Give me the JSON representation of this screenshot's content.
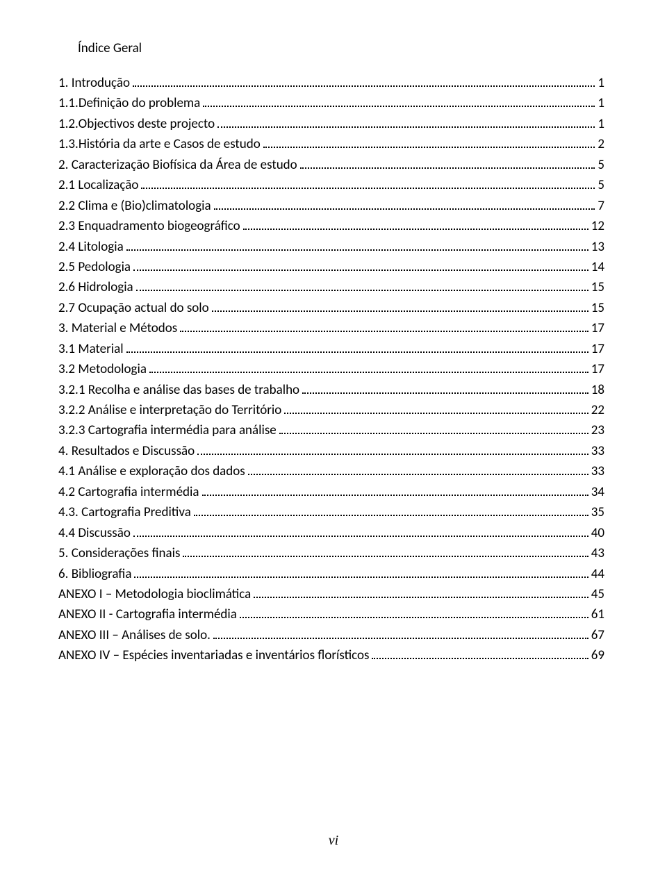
{
  "title": "Índice Geral",
  "page_number_label": "vi",
  "colors": {
    "background": "#ffffff",
    "text": "#000000"
  },
  "typography": {
    "body_font": "Calibri",
    "body_size_pt": 14,
    "page_number_font": "Times New Roman",
    "page_number_style": "italic"
  },
  "entries": [
    {
      "label": "1. Introdução",
      "page": "1"
    },
    {
      "label": "1.1.Definição do problema",
      "page": "1"
    },
    {
      "label": "1.2.Objectivos deste projecto",
      "page": "1"
    },
    {
      "label": "1.3.História da arte e Casos de estudo",
      "page": "2"
    },
    {
      "label": "2. Caracterização Biofísica da Área de estudo",
      "page": "5"
    },
    {
      "label": "2.1 Localização",
      "page": "5"
    },
    {
      "label": "2.2 Clima e (Bio)climatologia",
      "page": "7"
    },
    {
      "label": "2.3 Enquadramento biogeográfico",
      "page": "12"
    },
    {
      "label": "2.4 Litologia",
      "page": "13"
    },
    {
      "label": "2.5 Pedologia",
      "page": "14"
    },
    {
      "label": "2.6 Hidrologia",
      "page": "15"
    },
    {
      "label": "2.7 Ocupação actual do solo",
      "page": "15"
    },
    {
      "label": "3. Material e Métodos",
      "page": "17"
    },
    {
      "label": "3.1 Material",
      "page": "17"
    },
    {
      "label": "3.2 Metodologia",
      "page": "17"
    },
    {
      "label": "3.2.1 Recolha e análise das bases de trabalho",
      "page": "18"
    },
    {
      "label": "3.2.2 Análise e interpretação do Território",
      "page": "22"
    },
    {
      "label": "3.2.3 Cartografia intermédia para análise",
      "page": "23"
    },
    {
      "label": "4. Resultados e Discussão",
      "page": "33"
    },
    {
      "label": "4.1 Análise e exploração dos dados",
      "page": "33"
    },
    {
      "label": "4.2 Cartografia intermédia",
      "page": "34"
    },
    {
      "label": "4.3. Cartografia Preditiva",
      "page": "35"
    },
    {
      "label": "4.4 Discussão",
      "page": "40"
    },
    {
      "label": "5. Considerações finais",
      "page": "43"
    },
    {
      "label": "6. Bibliografia",
      "page": "44"
    },
    {
      "label": "ANEXO I – Metodologia bioclimática",
      "page": "45"
    },
    {
      "label": "ANEXO II - Cartografia intermédia",
      "page": "61"
    },
    {
      "label": "ANEXO III – Análises de solo.",
      "page": "67"
    },
    {
      "label": "ANEXO IV – Espécies inventariadas e inventários florísticos",
      "page": "69"
    }
  ]
}
